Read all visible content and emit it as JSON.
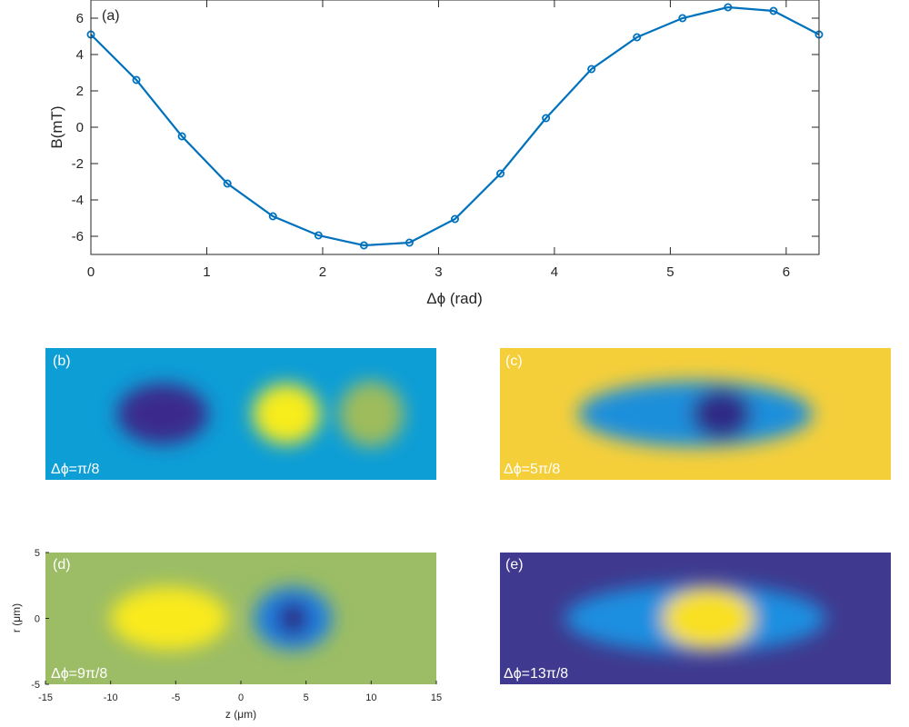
{
  "chart_data": [
    {
      "type": "line",
      "panel": "(a)",
      "xlabel": "Δϕ (rad)",
      "ylabel": "B(mT)",
      "xlim": [
        0,
        6.2832
      ],
      "ylim": [
        -7,
        7
      ],
      "xticks": [
        0,
        1,
        2,
        3,
        4,
        5,
        6
      ],
      "yticks": [
        -6,
        -4,
        -2,
        0,
        2,
        4,
        6
      ],
      "series": [
        {
          "name": "B",
          "color": "#0072bd",
          "marker": "circle",
          "x": [
            0,
            0.3927,
            0.7854,
            1.1781,
            1.5708,
            1.9635,
            2.3562,
            2.7489,
            3.1416,
            3.5343,
            3.927,
            4.3197,
            4.7124,
            5.1051,
            5.4978,
            5.8905,
            6.2832
          ],
          "y": [
            5.1,
            2.6,
            -0.5,
            -3.1,
            -4.9,
            -5.95,
            -6.5,
            -6.35,
            -5.05,
            -2.55,
            0.5,
            3.2,
            4.95,
            6.0,
            6.6,
            6.4,
            5.1
          ]
        }
      ]
    },
    {
      "type": "heatmap",
      "panel": "(b)",
      "annotation": "Δϕ=π/8",
      "background_color": "#0d9ed6",
      "blobs": [
        {
          "z": -6,
          "r": 0,
          "color": "#3b2a8c",
          "z_half_width": 3.5,
          "r_half_width": 2.3
        },
        {
          "z": 3.5,
          "r": 0,
          "color": "#f7ec1e",
          "z_half_width": 2.6,
          "r_half_width": 2.3
        },
        {
          "z": 10,
          "r": 0,
          "color": "#9ebc5c",
          "z_half_width": 2.5,
          "r_half_width": 2.5
        }
      ]
    },
    {
      "type": "heatmap",
      "panel": "(c)",
      "annotation": "Δϕ=5π/8",
      "background_color": "#f5cf3a",
      "blobs": [
        {
          "z": 0,
          "r": 0,
          "color": "#1a8fdb",
          "z_half_width": 9,
          "r_half_width": 2.5
        },
        {
          "z": 2,
          "r": 0,
          "color": "#2f2a85",
          "z_half_width": 2.3,
          "r_half_width": 1.9
        }
      ]
    },
    {
      "type": "heatmap",
      "panel": "(d)",
      "annotation": "Δϕ=9π/8",
      "xlabel": "z (μm)",
      "ylabel": "r (μm)",
      "xlim": [
        -15,
        15
      ],
      "ylim": [
        -5,
        5
      ],
      "xticks": [
        -15,
        -10,
        -5,
        0,
        5,
        10,
        15
      ],
      "yticks": [
        -5,
        0,
        5
      ],
      "background_color": "#9cbd65",
      "blobs": [
        {
          "z": -5.5,
          "r": 0,
          "color": "#f9ea1d",
          "z_half_width": 4.5,
          "r_half_width": 2.4
        },
        {
          "z": 4,
          "r": 0,
          "color": "#1a7ee0",
          "z_half_width": 3,
          "r_half_width": 2.4
        },
        {
          "z": 4,
          "r": 0,
          "color": "#2b2784",
          "z_half_width": 1.2,
          "r_half_width": 1.3
        }
      ]
    },
    {
      "type": "heatmap",
      "panel": "(e)",
      "annotation": "Δϕ=13π/8",
      "background_color": "#3f3a8f",
      "blobs": [
        {
          "z": 0,
          "r": 0,
          "color": "#1c8fe0",
          "z_half_width": 10,
          "r_half_width": 2.6
        },
        {
          "z": 1,
          "r": 0,
          "color": "#f9e022",
          "z_half_width": 3.5,
          "r_half_width": 2.3
        }
      ]
    }
  ]
}
